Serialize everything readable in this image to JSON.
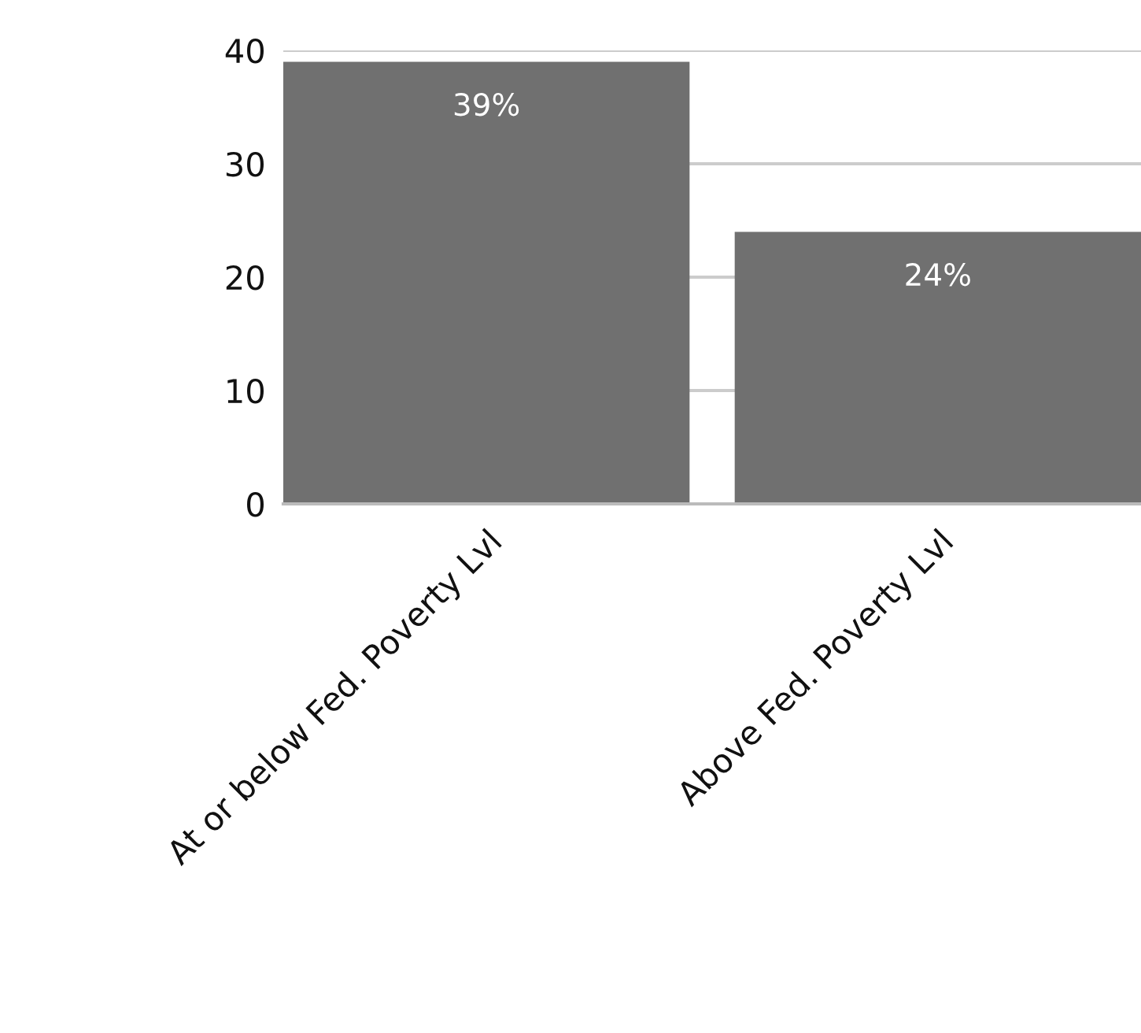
{
  "chart_data": {
    "type": "bar",
    "categories": [
      "At or below Fed. Poverty Lvl",
      "Above Fed. Poverty Lvl"
    ],
    "values": [
      39,
      24
    ],
    "color": "#707070",
    "value_labels": [
      "39%",
      "24%"
    ],
    "ylim": [
      0,
      40
    ],
    "yticks": [
      0,
      10,
      20,
      30,
      40
    ],
    "grid": "y",
    "legend": false
  }
}
